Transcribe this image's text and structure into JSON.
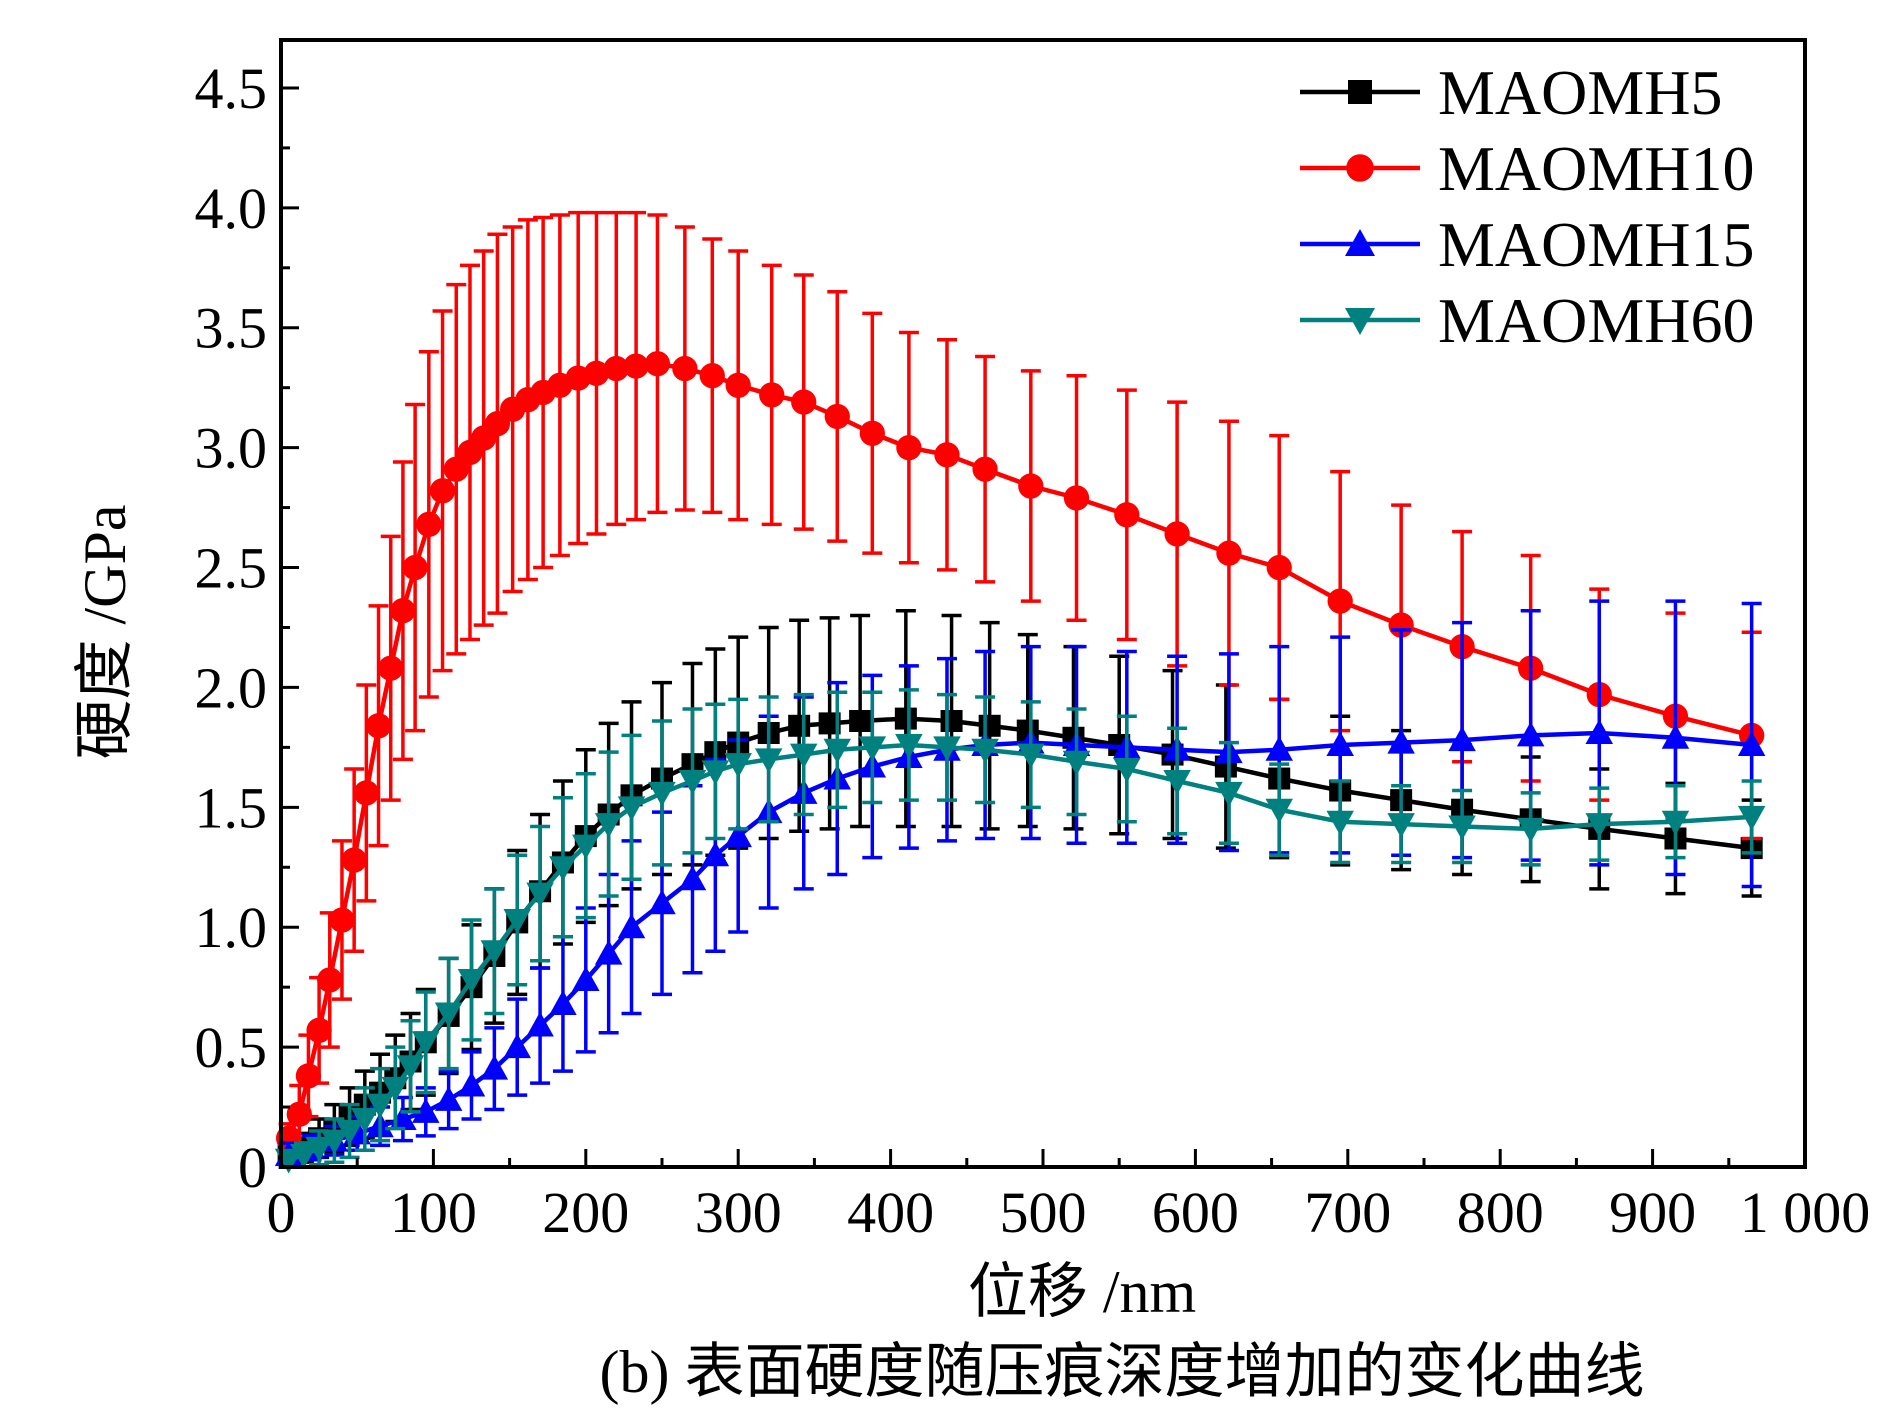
{
  "chart_data": {
    "type": "line",
    "caption": "(b) 表面硬度随压痕深度增加的变化曲线",
    "xlabel": "位移 /nm",
    "ylabel": "硬度 /GPa",
    "xlim": [
      0,
      1000
    ],
    "ylim": [
      0,
      4.7
    ],
    "x_ticks": [
      0,
      100,
      200,
      300,
      400,
      500,
      600,
      700,
      800,
      900,
      1000
    ],
    "x_tick_labels": [
      "0",
      "100",
      "200",
      "300",
      "400",
      "500",
      "600",
      "700",
      "800",
      "900",
      "1 000"
    ],
    "y_ticks": [
      0,
      0.5,
      1.0,
      1.5,
      2.0,
      2.5,
      3.0,
      3.5,
      4.0,
      4.5
    ],
    "y_tick_labels": [
      "0",
      "0.5",
      "1.0",
      "1.5",
      "2.0",
      "2.5",
      "3.0",
      "3.5",
      "4.0",
      "4.5"
    ],
    "grid": false,
    "legend_position": "top-right",
    "series": [
      {
        "name": "MAOMH5",
        "color": "#000000",
        "marker": "square",
        "x": [
          5,
          15,
          25,
          35,
          45,
          55,
          65,
          75,
          85,
          95,
          110,
          125,
          140,
          155,
          170,
          185,
          200,
          215,
          230,
          250,
          270,
          285,
          300,
          320,
          340,
          360,
          380,
          410,
          440,
          465,
          490,
          520,
          550,
          585,
          620,
          655,
          695,
          735,
          775,
          820,
          865,
          915,
          965
        ],
        "y": [
          0.05,
          0.08,
          0.12,
          0.16,
          0.21,
          0.26,
          0.31,
          0.37,
          0.44,
          0.52,
          0.63,
          0.75,
          0.88,
          1.02,
          1.15,
          1.27,
          1.38,
          1.47,
          1.55,
          1.62,
          1.68,
          1.73,
          1.77,
          1.81,
          1.84,
          1.85,
          1.86,
          1.87,
          1.86,
          1.84,
          1.82,
          1.79,
          1.76,
          1.72,
          1.67,
          1.62,
          1.57,
          1.53,
          1.49,
          1.45,
          1.41,
          1.37,
          1.33
        ],
        "err": [
          0.05,
          0.06,
          0.08,
          0.1,
          0.12,
          0.14,
          0.16,
          0.18,
          0.2,
          0.22,
          0.24,
          0.26,
          0.28,
          0.3,
          0.32,
          0.34,
          0.36,
          0.38,
          0.39,
          0.4,
          0.42,
          0.43,
          0.44,
          0.44,
          0.44,
          0.44,
          0.44,
          0.45,
          0.44,
          0.43,
          0.4,
          0.38,
          0.37,
          0.35,
          0.34,
          0.33,
          0.31,
          0.29,
          0.27,
          0.26,
          0.25,
          0.23,
          0.2
        ]
      },
      {
        "name": "MAOMH10",
        "color": "#ff0000",
        "marker": "circle",
        "x": [
          5,
          12,
          18,
          25,
          32,
          40,
          48,
          56,
          64,
          72,
          80,
          88,
          97,
          106,
          115,
          124,
          133,
          142,
          152,
          162,
          172,
          183,
          195,
          207,
          220,
          233,
          247,
          265,
          283,
          300,
          322,
          343,
          365,
          388,
          412,
          437,
          462,
          492,
          522,
          555,
          588,
          622,
          655,
          695,
          735,
          775,
          820,
          865,
          915,
          965
        ],
        "y": [
          0.12,
          0.22,
          0.38,
          0.57,
          0.78,
          1.03,
          1.28,
          1.56,
          1.84,
          2.08,
          2.32,
          2.5,
          2.68,
          2.82,
          2.91,
          2.98,
          3.04,
          3.1,
          3.16,
          3.2,
          3.23,
          3.26,
          3.29,
          3.31,
          3.33,
          3.34,
          3.35,
          3.33,
          3.3,
          3.26,
          3.22,
          3.19,
          3.13,
          3.06,
          3.0,
          2.97,
          2.91,
          2.84,
          2.79,
          2.72,
          2.64,
          2.56,
          2.5,
          2.36,
          2.26,
          2.17,
          2.08,
          1.97,
          1.88,
          1.8
        ],
        "err": [
          0.06,
          0.12,
          0.17,
          0.22,
          0.28,
          0.33,
          0.38,
          0.45,
          0.5,
          0.55,
          0.62,
          0.68,
          0.72,
          0.75,
          0.77,
          0.78,
          0.78,
          0.79,
          0.76,
          0.75,
          0.73,
          0.71,
          0.69,
          0.67,
          0.65,
          0.64,
          0.62,
          0.59,
          0.57,
          0.56,
          0.54,
          0.53,
          0.52,
          0.5,
          0.48,
          0.48,
          0.47,
          0.48,
          0.51,
          0.52,
          0.55,
          0.55,
          0.55,
          0.54,
          0.5,
          0.48,
          0.47,
          0.44,
          0.43,
          0.43
        ]
      },
      {
        "name": "MAOMH15",
        "color": "#0000ff",
        "marker": "triangle-up",
        "x": [
          5,
          20,
          35,
          50,
          65,
          80,
          95,
          110,
          125,
          140,
          155,
          170,
          185,
          200,
          215,
          230,
          250,
          270,
          285,
          300,
          320,
          343,
          365,
          388,
          412,
          437,
          462,
          492,
          522,
          555,
          588,
          622,
          655,
          695,
          735,
          775,
          820,
          865,
          915,
          965
        ],
        "y": [
          0.05,
          0.08,
          0.11,
          0.14,
          0.17,
          0.2,
          0.23,
          0.28,
          0.34,
          0.41,
          0.5,
          0.59,
          0.68,
          0.78,
          0.89,
          1.0,
          1.1,
          1.2,
          1.3,
          1.38,
          1.48,
          1.56,
          1.62,
          1.67,
          1.71,
          1.74,
          1.76,
          1.77,
          1.76,
          1.75,
          1.74,
          1.73,
          1.74,
          1.76,
          1.77,
          1.78,
          1.8,
          1.81,
          1.79,
          1.76
        ],
        "err": [
          0.05,
          0.05,
          0.06,
          0.07,
          0.08,
          0.09,
          0.1,
          0.12,
          0.14,
          0.17,
          0.2,
          0.24,
          0.28,
          0.3,
          0.33,
          0.36,
          0.38,
          0.39,
          0.4,
          0.4,
          0.4,
          0.4,
          0.4,
          0.38,
          0.38,
          0.38,
          0.39,
          0.4,
          0.41,
          0.4,
          0.39,
          0.41,
          0.43,
          0.45,
          0.47,
          0.49,
          0.52,
          0.55,
          0.57,
          0.59
        ]
      },
      {
        "name": "MAOMH60",
        "color": "#00807f",
        "marker": "triangle-down",
        "x": [
          5,
          15,
          25,
          35,
          45,
          55,
          65,
          75,
          85,
          95,
          110,
          125,
          140,
          155,
          170,
          185,
          200,
          215,
          230,
          250,
          270,
          285,
          300,
          320,
          343,
          365,
          388,
          412,
          437,
          462,
          492,
          522,
          555,
          588,
          622,
          655,
          695,
          735,
          775,
          820,
          865,
          915,
          965
        ],
        "y": [
          0.03,
          0.05,
          0.08,
          0.11,
          0.15,
          0.2,
          0.26,
          0.33,
          0.42,
          0.52,
          0.64,
          0.78,
          0.9,
          1.03,
          1.14,
          1.25,
          1.34,
          1.43,
          1.5,
          1.56,
          1.61,
          1.65,
          1.68,
          1.7,
          1.72,
          1.74,
          1.75,
          1.76,
          1.75,
          1.74,
          1.72,
          1.69,
          1.66,
          1.61,
          1.56,
          1.49,
          1.44,
          1.43,
          1.42,
          1.41,
          1.43,
          1.44,
          1.46
        ],
        "err": [
          0.03,
          0.05,
          0.07,
          0.09,
          0.11,
          0.13,
          0.15,
          0.17,
          0.19,
          0.21,
          0.23,
          0.25,
          0.26,
          0.27,
          0.28,
          0.29,
          0.3,
          0.3,
          0.3,
          0.3,
          0.3,
          0.28,
          0.27,
          0.26,
          0.25,
          0.24,
          0.23,
          0.23,
          0.22,
          0.22,
          0.22,
          0.22,
          0.22,
          0.22,
          0.21,
          0.19,
          0.17,
          0.16,
          0.15,
          0.15,
          0.15,
          0.15,
          0.15
        ]
      }
    ]
  }
}
